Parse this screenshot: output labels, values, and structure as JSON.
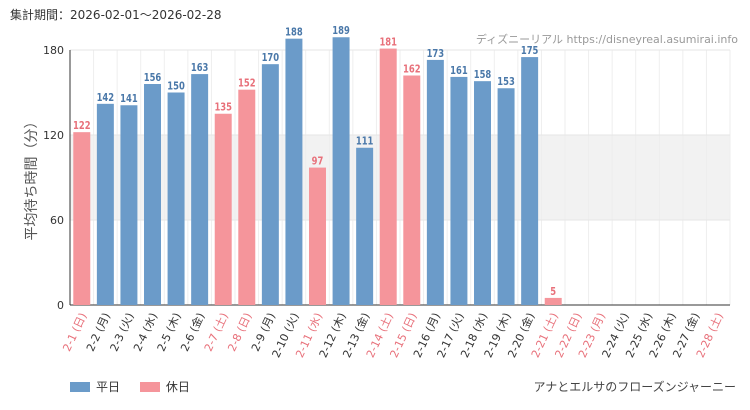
{
  "header": {
    "period_label": "集計期間",
    "period_start": "2026-02-01",
    "period_end": "2026-02-28",
    "source": "ディズニーリアル https://disneyreal.asumirai.info"
  },
  "footer": {
    "attraction": "アナとエルサのフローズンジャーニー"
  },
  "legend": {
    "weekday": "平日",
    "holiday": "休日"
  },
  "colors": {
    "weekday": "#6b9bc9",
    "holiday": "#f5959b",
    "weekday_text": "#4a78a9",
    "holiday_text": "#e8707a",
    "band": "#f2f2f2"
  },
  "chart_data": {
    "type": "bar",
    "ylabel": "平均待ち時間（分）",
    "ylim": [
      0,
      180
    ],
    "yticks": [
      0,
      60,
      120,
      180
    ],
    "band_range": [
      60,
      120
    ],
    "categories": [
      "2-1 (日)",
      "2-2 (月)",
      "2-3 (火)",
      "2-4 (水)",
      "2-5 (木)",
      "2-6 (金)",
      "2-7 (土)",
      "2-8 (日)",
      "2-9 (月)",
      "2-10 (火)",
      "2-11 (水)",
      "2-12 (木)",
      "2-13 (金)",
      "2-14 (土)",
      "2-15 (日)",
      "2-16 (月)",
      "2-17 (火)",
      "2-18 (水)",
      "2-19 (木)",
      "2-20 (金)",
      "2-21 (土)",
      "2-22 (日)",
      "2-23 (月)",
      "2-24 (火)",
      "2-25 (水)",
      "2-26 (木)",
      "2-27 (金)",
      "2-28 (土)"
    ],
    "values": [
      122,
      142,
      141,
      156,
      150,
      163,
      135,
      152,
      170,
      188,
      97,
      189,
      111,
      181,
      162,
      173,
      161,
      158,
      153,
      175,
      5,
      null,
      null,
      null,
      null,
      null,
      null,
      null
    ],
    "day_types": [
      "holiday",
      "weekday",
      "weekday",
      "weekday",
      "weekday",
      "weekday",
      "holiday",
      "holiday",
      "weekday",
      "weekday",
      "holiday",
      "weekday",
      "weekday",
      "holiday",
      "holiday",
      "weekday",
      "weekday",
      "weekday",
      "weekday",
      "weekday",
      "holiday",
      "holiday",
      "holiday",
      "weekday",
      "weekday",
      "weekday",
      "weekday",
      "holiday"
    ]
  }
}
